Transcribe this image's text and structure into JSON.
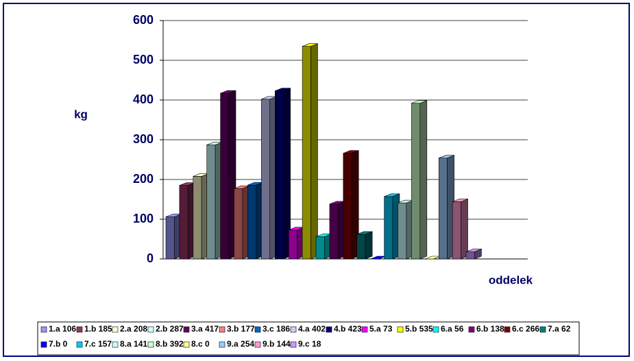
{
  "chart_data": {
    "type": "bar",
    "y_label": "kg",
    "x_label": "oddelek",
    "ylim": [
      0,
      600
    ],
    "yticks": [
      0,
      100,
      200,
      300,
      400,
      500,
      600
    ],
    "grid": true,
    "series": [
      {
        "name": "1.a 106",
        "color": "#9999ff",
        "values": [
          106
        ]
      },
      {
        "name": "1.b 185",
        "color": "#993366",
        "values": [
          185
        ]
      },
      {
        "name": "2.a 208",
        "color": "#ffffcc",
        "values": [
          208
        ]
      },
      {
        "name": "2.b 287",
        "color": "#ccffff",
        "values": [
          287
        ]
      },
      {
        "name": "3.a 417",
        "color": "#660066",
        "values": [
          417
        ]
      },
      {
        "name": "3.b 177",
        "color": "#ff8080",
        "values": [
          177
        ]
      },
      {
        "name": "3.c 186",
        "color": "#0066cc",
        "values": [
          186
        ]
      },
      {
        "name": "4.a 402",
        "color": "#ccccff",
        "values": [
          402
        ]
      },
      {
        "name": "4.b 423",
        "color": "#000080",
        "values": [
          423
        ]
      },
      {
        "name": "5.a 73",
        "color": "#ff00ff",
        "values": [
          73
        ]
      },
      {
        "name": "5.b 535",
        "color": "#ffff00",
        "values": [
          535
        ]
      },
      {
        "name": "6.a 56",
        "color": "#00ffff",
        "values": [
          56
        ]
      },
      {
        "name": "6.b 138",
        "color": "#800080",
        "values": [
          138
        ]
      },
      {
        "name": "6.c 266",
        "color": "#800000",
        "values": [
          266
        ]
      },
      {
        "name": "7.a 62",
        "color": "#008080",
        "values": [
          62
        ]
      },
      {
        "name": "7.b 0",
        "color": "#0000ff",
        "values": [
          0
        ]
      },
      {
        "name": "7.c 157",
        "color": "#00ccff",
        "values": [
          157
        ]
      },
      {
        "name": "8.a 141",
        "color": "#ccffff",
        "values": [
          141
        ]
      },
      {
        "name": "8.b 392",
        "color": "#ccffcc",
        "values": [
          392
        ]
      },
      {
        "name": "8.c 0",
        "color": "#ffff99",
        "values": [
          0
        ]
      },
      {
        "name": "9.a 254",
        "color": "#99ccff",
        "values": [
          254
        ]
      },
      {
        "name": "9.b 144",
        "color": "#ff99cc",
        "values": [
          144
        ]
      },
      {
        "name": "9.c 18",
        "color": "#cc99ff",
        "values": [
          18
        ]
      }
    ]
  }
}
